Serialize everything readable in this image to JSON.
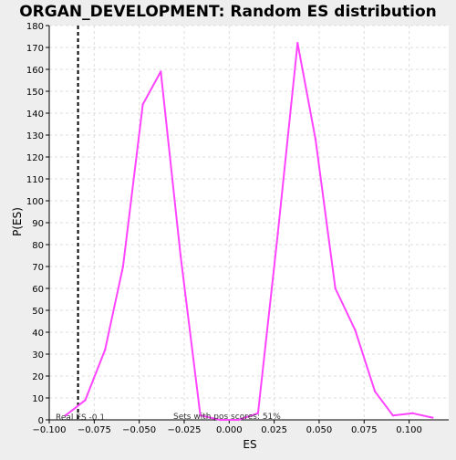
{
  "chart_data": {
    "type": "line",
    "title": "ORGAN_DEVELOPMENT: Random ES distribution",
    "xlabel": "ES",
    "ylabel": "P(ES)",
    "xlim": [
      -0.1,
      0.122
    ],
    "ylim": [
      0,
      180
    ],
    "xticks": [
      -0.1,
      -0.075,
      -0.05,
      -0.025,
      0.0,
      0.025,
      0.05,
      0.075,
      0.1
    ],
    "xtick_labels": [
      "−0.100",
      "−0.075",
      "−0.050",
      "−0.025",
      "0.000",
      "0.025",
      "0.050",
      "0.075",
      "0.100"
    ],
    "yticks": [
      0,
      10,
      20,
      30,
      40,
      50,
      60,
      70,
      80,
      90,
      100,
      110,
      120,
      130,
      140,
      150,
      160,
      170,
      180
    ],
    "ytick_labels": [
      "0",
      "10",
      "20",
      "30",
      "40",
      "50",
      "60",
      "70",
      "80",
      "90",
      "100",
      "110",
      "120",
      "130",
      "140",
      "150",
      "160",
      "170",
      "180"
    ],
    "grid": true,
    "line_color": "#ff44ff",
    "series": [
      {
        "x": [
          -0.091,
          -0.08,
          -0.069,
          -0.059,
          -0.048,
          -0.038,
          -0.027,
          -0.016,
          -0.005,
          0.005,
          0.016,
          0.027,
          0.038,
          0.048,
          0.059,
          0.07,
          0.081,
          0.091,
          0.102,
          0.113
        ],
        "values": [
          2,
          9,
          32,
          70,
          144,
          159,
          75,
          2,
          0,
          0,
          3,
          85,
          172,
          128,
          60,
          41,
          13,
          2,
          3,
          1
        ]
      }
    ],
    "vline": {
      "x": -0.084,
      "style": "dashed",
      "color": "#000000"
    },
    "annotations": {
      "real_es": "Real ES -0.1",
      "pos_scores": "Sets with pos scores: 51%"
    }
  }
}
